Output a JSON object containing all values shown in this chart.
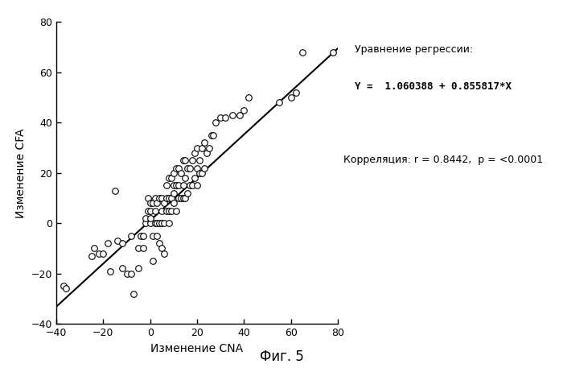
{
  "title": "",
  "xlabel": "Изменение CNA",
  "ylabel": "Изменение CFA",
  "fig_label": "Фиг. 5",
  "xlim": [
    -40,
    80
  ],
  "ylim": [
    -40,
    80
  ],
  "xticks": [
    -40,
    -20,
    0,
    20,
    40,
    60,
    80
  ],
  "yticks": [
    -40,
    -20,
    0,
    20,
    40,
    60,
    80
  ],
  "regression_label_line1": "Уравнение регрессии:",
  "regression_label_line2": "Y =  1.060388 + 0.855817*X",
  "correlation_label": "Корреляция: r = 0.8442,  p = <0.0001",
  "intercept": 1.060388,
  "slope": 0.855817,
  "scatter_x": [
    -37,
    -36,
    -25,
    -24,
    -22,
    -20,
    -18,
    -17,
    -15,
    -14,
    -12,
    -12,
    -10,
    -8,
    -8,
    -7,
    -5,
    -5,
    -4,
    -3,
    -3,
    -2,
    -2,
    -1,
    -1,
    0,
    0,
    0,
    0,
    1,
    1,
    1,
    2,
    2,
    2,
    3,
    3,
    3,
    4,
    4,
    4,
    5,
    5,
    5,
    5,
    6,
    6,
    6,
    7,
    7,
    7,
    8,
    8,
    8,
    8,
    9,
    9,
    9,
    10,
    10,
    10,
    10,
    11,
    11,
    11,
    12,
    12,
    12,
    13,
    13,
    14,
    14,
    14,
    15,
    15,
    15,
    16,
    16,
    17,
    17,
    18,
    18,
    19,
    19,
    20,
    20,
    20,
    21,
    21,
    22,
    22,
    23,
    23,
    24,
    25,
    26,
    27,
    28,
    30,
    32,
    35,
    38,
    40,
    42,
    55,
    60,
    62,
    65,
    78
  ],
  "scatter_y": [
    -25,
    -26,
    -13,
    -10,
    -12,
    -12,
    -8,
    -19,
    13,
    -7,
    -18,
    -8,
    -20,
    -20,
    -5,
    -28,
    -18,
    -10,
    -5,
    -10,
    -5,
    0,
    2,
    5,
    10,
    0,
    2,
    5,
    8,
    -15,
    -5,
    8,
    0,
    5,
    10,
    -5,
    0,
    8,
    -8,
    0,
    10,
    -10,
    0,
    5,
    10,
    -12,
    0,
    8,
    5,
    10,
    15,
    0,
    5,
    10,
    18,
    5,
    10,
    18,
    8,
    12,
    15,
    20,
    5,
    15,
    22,
    10,
    15,
    22,
    10,
    20,
    10,
    15,
    25,
    10,
    18,
    25,
    12,
    22,
    15,
    22,
    15,
    25,
    18,
    28,
    15,
    22,
    30,
    20,
    25,
    20,
    30,
    22,
    32,
    28,
    30,
    35,
    35,
    40,
    42,
    42,
    43,
    43,
    45,
    50,
    48,
    50,
    52,
    68,
    68
  ],
  "marker_size": 30,
  "marker_color": "white",
  "marker_edge_color": "black",
  "line_color": "black",
  "background_color": "white"
}
